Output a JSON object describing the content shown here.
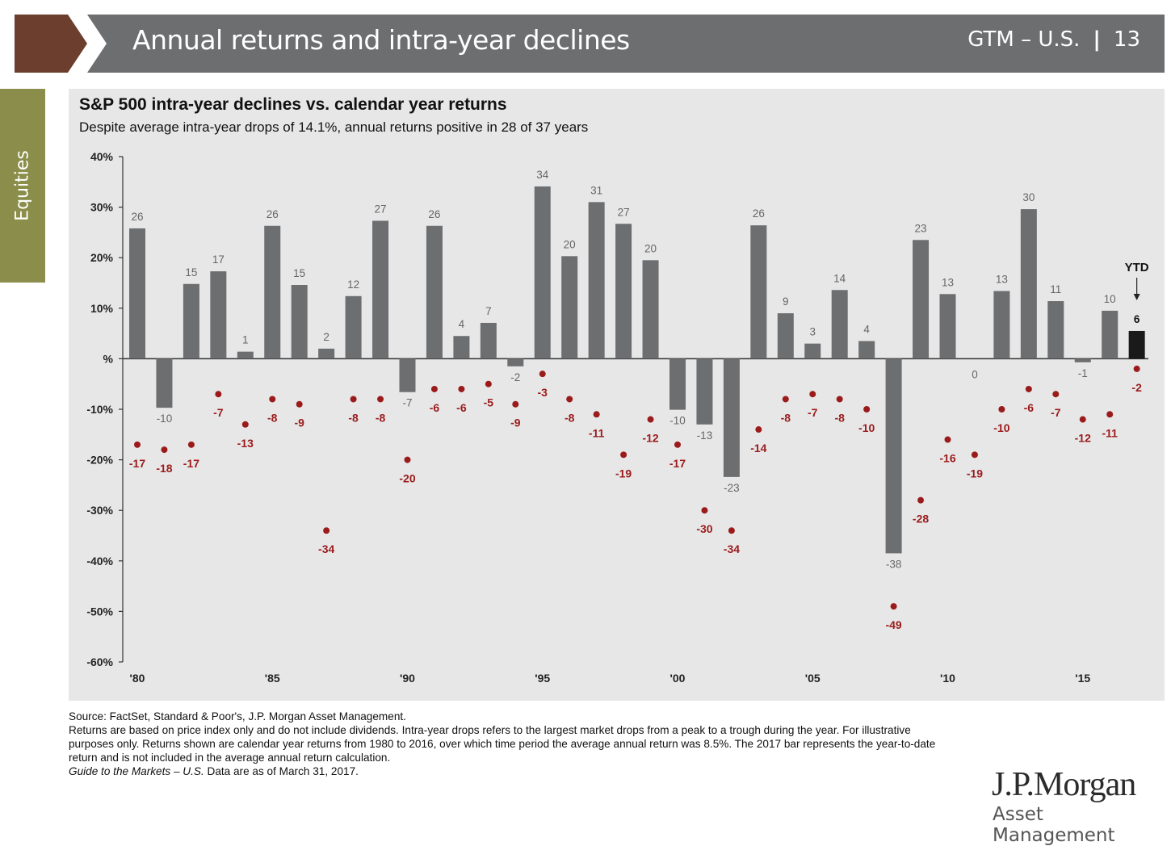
{
  "header": {
    "title": "Annual returns and intra-year declines",
    "gtm": "GTM – U.S.",
    "page_number": "13"
  },
  "side_tab": {
    "label": "Equities"
  },
  "colors": {
    "header_gray": "#6d6e70",
    "chevron_brown": "#6b3e2e",
    "tab_olive": "#8b8e4a",
    "bar_gray": "#6d6e70",
    "ytd_bar": "#1a1a1a",
    "decline_red": "#9b1b1b",
    "panel_bg": "#e7e7e8"
  },
  "chart_data": {
    "type": "bar",
    "title": "S&P 500 intra-year declines vs. calendar year returns",
    "subtitle": "Despite average intra-year drops of 14.1%, annual returns positive in 28 of 37 years",
    "ylim": [
      -60,
      40
    ],
    "y_ticks": [
      40,
      30,
      20,
      10,
      0,
      -10,
      -20,
      -30,
      -40,
      -50,
      -60
    ],
    "y_tick_labels": [
      "40%",
      "30%",
      "20%",
      "10%",
      "%",
      "-10%",
      "-20%",
      "-30%",
      "-40%",
      "-50%",
      "-60%"
    ],
    "x_ticks": [
      {
        "year": 1980,
        "label": "'80"
      },
      {
        "year": 1985,
        "label": "'85"
      },
      {
        "year": 1990,
        "label": "'90"
      },
      {
        "year": 1995,
        "label": "'95"
      },
      {
        "year": 2000,
        "label": "'00"
      },
      {
        "year": 2005,
        "label": "'05"
      },
      {
        "year": 2010,
        "label": "'10"
      },
      {
        "year": 2015,
        "label": "'15"
      }
    ],
    "years": [
      1980,
      1981,
      1982,
      1983,
      1984,
      1985,
      1986,
      1987,
      1988,
      1989,
      1990,
      1991,
      1992,
      1993,
      1994,
      1995,
      1996,
      1997,
      1998,
      1999,
      2000,
      2001,
      2002,
      2003,
      2004,
      2005,
      2006,
      2007,
      2008,
      2009,
      2010,
      2011,
      2012,
      2013,
      2014,
      2015,
      2016,
      2017
    ],
    "annual_returns": [
      25.8,
      -9.7,
      14.8,
      17.3,
      1.4,
      26.3,
      14.6,
      2.0,
      12.4,
      27.3,
      -6.6,
      26.3,
      4.5,
      7.1,
      -1.5,
      34.1,
      20.3,
      31.0,
      26.7,
      19.5,
      -10.1,
      -13.0,
      -23.4,
      26.4,
      9.0,
      3.0,
      13.6,
      3.5,
      -38.5,
      23.5,
      12.8,
      0.0,
      13.4,
      29.6,
      11.4,
      -0.7,
      9.5,
      5.5
    ],
    "annual_return_labels": [
      "26",
      "-10",
      "15",
      "17",
      "1",
      "26",
      "15",
      "2",
      "12",
      "27",
      "-7",
      "26",
      "4",
      "7",
      "-2",
      "34",
      "20",
      "31",
      "27",
      "20",
      "-10",
      "-13",
      "-23",
      "26",
      "9",
      "3",
      "14",
      "4",
      "-38",
      "23",
      "13",
      "0",
      "13",
      "30",
      "11",
      "-1",
      "10",
      "6"
    ],
    "intra_year_declines": [
      -17,
      -18,
      -17,
      -7,
      -13,
      -8,
      -9,
      -34,
      -8,
      -8,
      -20,
      -6,
      -6,
      -5,
      -9,
      -3,
      -8,
      -11,
      -19,
      -12,
      -17,
      -30,
      -34,
      -14,
      -8,
      -7,
      -8,
      -10,
      -49,
      -28,
      -16,
      -19,
      -10,
      -6,
      -7,
      -12,
      -11,
      -2
    ],
    "decline_labels": [
      "-17",
      "-18",
      "-17",
      "-7",
      "-13",
      "-8",
      "-9",
      "-34",
      "-8",
      "-8",
      "-20",
      "-6",
      "-6",
      "-5",
      "-9",
      "-3",
      "-8",
      "-11",
      "-19",
      "-12",
      "-17",
      "-30",
      "-34",
      "-14",
      "-8",
      "-7",
      "-8",
      "-10",
      "-49",
      "-28",
      "-16",
      "-19",
      "-10",
      "-6",
      "-7",
      "-12",
      "-11",
      "-2"
    ],
    "ytd_label": "YTD",
    "ytd_year": 2017
  },
  "footnotes": {
    "source": "Source: FactSet, Standard & Poor's, J.P. Morgan Asset Management.",
    "note": "Returns are based on price index only and do not include dividends. Intra-year drops refers to the largest market drops from a peak to a trough during the year. For illustrative purposes only. Returns shown are calendar year returns from 1980 to 2016, over which time period the average annual return was 8.5%. The 2017 bar represents the year-to-date return and is not included in the average annual return calculation.",
    "guide": "Guide to the Markets – U.S.",
    "date": " Data are as of March 31, 2017."
  },
  "logo": {
    "brand": "J.P.Morgan",
    "sub": "Asset Management"
  }
}
